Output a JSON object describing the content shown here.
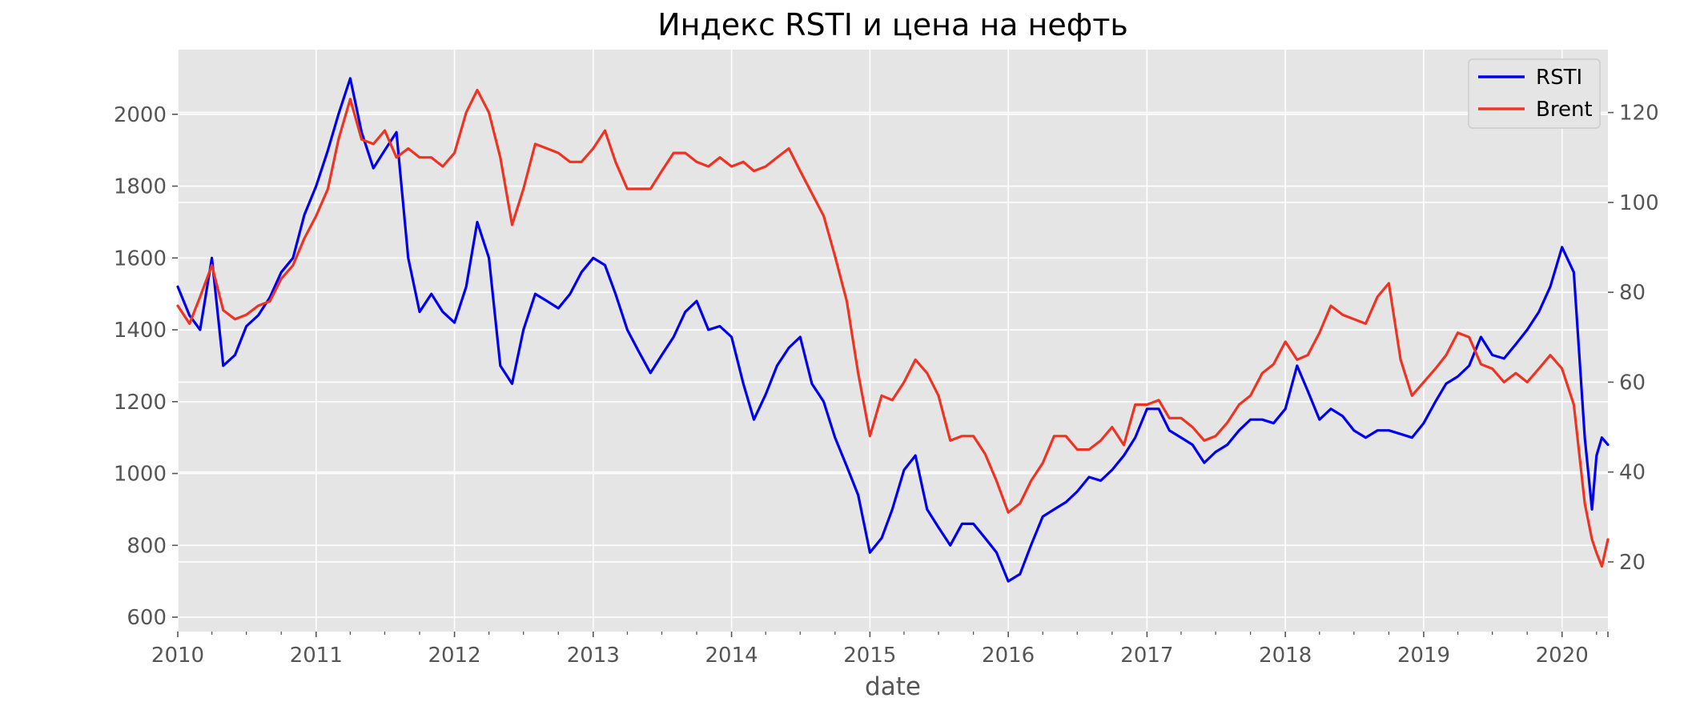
{
  "colors": {
    "background": "#e5e5e5",
    "grid": "#ffffff",
    "rsti": "#0000ee",
    "brent": "#ee3322",
    "tick_text": "#555555"
  },
  "chart_data": {
    "type": "line",
    "title": "Индекс RSTI и цена на нефть",
    "xlabel": "date",
    "ylabel": "",
    "y2label": "",
    "x_tick_labels": [
      "2010",
      "2011",
      "2012",
      "2013",
      "2014",
      "2015",
      "2016",
      "2017",
      "2018",
      "2019",
      "2020"
    ],
    "xlim": [
      "2010-01-01",
      "2020-05-01"
    ],
    "ylim_left": [
      560,
      2180
    ],
    "ylim_right": [
      4.5,
      134
    ],
    "y_ticks_left": [
      600,
      800,
      1000,
      1200,
      1400,
      1600,
      1800,
      2000
    ],
    "y_ticks_right": [
      20,
      40,
      60,
      80,
      100,
      120
    ],
    "grid": true,
    "legend": {
      "position": "top-right",
      "entries": [
        "RSTI",
        "Brent"
      ]
    },
    "series": [
      {
        "name": "RSTI",
        "axis": "left",
        "x": [
          "2010-01-01",
          "2010-02-01",
          "2010-03-01",
          "2010-04-01",
          "2010-05-01",
          "2010-06-01",
          "2010-07-01",
          "2010-08-01",
          "2010-09-01",
          "2010-10-01",
          "2010-11-01",
          "2010-12-01",
          "2011-01-01",
          "2011-02-01",
          "2011-03-01",
          "2011-04-01",
          "2011-05-01",
          "2011-06-01",
          "2011-07-01",
          "2011-08-01",
          "2011-09-01",
          "2011-10-01",
          "2011-11-01",
          "2011-12-01",
          "2012-01-01",
          "2012-02-01",
          "2012-03-01",
          "2012-04-01",
          "2012-05-01",
          "2012-06-01",
          "2012-07-01",
          "2012-08-01",
          "2012-09-01",
          "2012-10-01",
          "2012-11-01",
          "2012-12-01",
          "2013-01-01",
          "2013-02-01",
          "2013-03-01",
          "2013-04-01",
          "2013-05-01",
          "2013-06-01",
          "2013-07-01",
          "2013-08-01",
          "2013-09-01",
          "2013-10-01",
          "2013-11-01",
          "2013-12-01",
          "2014-01-01",
          "2014-02-01",
          "2014-03-01",
          "2014-04-01",
          "2014-05-01",
          "2014-06-01",
          "2014-07-01",
          "2014-08-01",
          "2014-09-01",
          "2014-10-01",
          "2014-11-01",
          "2014-12-01",
          "2015-01-01",
          "2015-02-01",
          "2015-03-01",
          "2015-04-01",
          "2015-05-01",
          "2015-06-01",
          "2015-07-01",
          "2015-08-01",
          "2015-09-01",
          "2015-10-01",
          "2015-11-01",
          "2015-12-01",
          "2016-01-01",
          "2016-02-01",
          "2016-03-01",
          "2016-04-01",
          "2016-05-01",
          "2016-06-01",
          "2016-07-01",
          "2016-08-01",
          "2016-09-01",
          "2016-10-01",
          "2016-11-01",
          "2016-12-01",
          "2017-01-01",
          "2017-02-01",
          "2017-03-01",
          "2017-04-01",
          "2017-05-01",
          "2017-06-01",
          "2017-07-01",
          "2017-08-01",
          "2017-09-01",
          "2017-10-01",
          "2017-11-01",
          "2017-12-01",
          "2018-01-01",
          "2018-02-01",
          "2018-03-01",
          "2018-04-01",
          "2018-05-01",
          "2018-06-01",
          "2018-07-01",
          "2018-08-01",
          "2018-09-01",
          "2018-10-01",
          "2018-11-01",
          "2018-12-01",
          "2019-01-01",
          "2019-02-01",
          "2019-03-01",
          "2019-04-01",
          "2019-05-01",
          "2019-06-01",
          "2019-07-01",
          "2019-08-01",
          "2019-09-01",
          "2019-10-01",
          "2019-11-01",
          "2019-12-01",
          "2020-01-01",
          "2020-02-01",
          "2020-03-01",
          "2020-03-20",
          "2020-04-01",
          "2020-04-15",
          "2020-05-01"
        ],
        "values": [
          1520,
          1440,
          1400,
          1600,
          1300,
          1330,
          1410,
          1440,
          1490,
          1560,
          1600,
          1720,
          1800,
          1900,
          2000,
          2100,
          1950,
          1850,
          1900,
          1950,
          1600,
          1450,
          1500,
          1450,
          1420,
          1520,
          1700,
          1600,
          1300,
          1250,
          1400,
          1500,
          1480,
          1460,
          1500,
          1560,
          1600,
          1580,
          1500,
          1400,
          1340,
          1280,
          1330,
          1380,
          1450,
          1480,
          1400,
          1410,
          1380,
          1250,
          1150,
          1220,
          1300,
          1350,
          1380,
          1250,
          1200,
          1100,
          1020,
          940,
          780,
          820,
          900,
          1010,
          1050,
          900,
          850,
          800,
          860,
          860,
          820,
          780,
          700,
          720,
          800,
          880,
          900,
          920,
          950,
          990,
          980,
          1010,
          1050,
          1100,
          1180,
          1180,
          1120,
          1100,
          1080,
          1030,
          1060,
          1080,
          1120,
          1150,
          1150,
          1140,
          1180,
          1300,
          1230,
          1150,
          1180,
          1160,
          1120,
          1100,
          1120,
          1120,
          1110,
          1100,
          1140,
          1200,
          1250,
          1270,
          1300,
          1380,
          1330,
          1320,
          1360,
          1400,
          1450,
          1520,
          1630,
          1560,
          1100,
          900,
          1050,
          1100,
          1080
        ]
      },
      {
        "name": "Brent",
        "axis": "right",
        "x": [
          "2010-01-01",
          "2010-02-01",
          "2010-03-01",
          "2010-04-01",
          "2010-05-01",
          "2010-06-01",
          "2010-07-01",
          "2010-08-01",
          "2010-09-01",
          "2010-10-01",
          "2010-11-01",
          "2010-12-01",
          "2011-01-01",
          "2011-02-01",
          "2011-03-01",
          "2011-04-01",
          "2011-05-01",
          "2011-06-01",
          "2011-07-01",
          "2011-08-01",
          "2011-09-01",
          "2011-10-01",
          "2011-11-01",
          "2011-12-01",
          "2012-01-01",
          "2012-02-01",
          "2012-03-01",
          "2012-04-01",
          "2012-05-01",
          "2012-06-01",
          "2012-07-01",
          "2012-08-01",
          "2012-09-01",
          "2012-10-01",
          "2012-11-01",
          "2012-12-01",
          "2013-01-01",
          "2013-02-01",
          "2013-03-01",
          "2013-04-01",
          "2013-05-01",
          "2013-06-01",
          "2013-07-01",
          "2013-08-01",
          "2013-09-01",
          "2013-10-01",
          "2013-11-01",
          "2013-12-01",
          "2014-01-01",
          "2014-02-01",
          "2014-03-01",
          "2014-04-01",
          "2014-05-01",
          "2014-06-01",
          "2014-07-01",
          "2014-08-01",
          "2014-09-01",
          "2014-10-01",
          "2014-11-01",
          "2014-12-01",
          "2015-01-01",
          "2015-02-01",
          "2015-03-01",
          "2015-04-01",
          "2015-05-01",
          "2015-06-01",
          "2015-07-01",
          "2015-08-01",
          "2015-09-01",
          "2015-10-01",
          "2015-11-01",
          "2015-12-01",
          "2016-01-01",
          "2016-02-01",
          "2016-03-01",
          "2016-04-01",
          "2016-05-01",
          "2016-06-01",
          "2016-07-01",
          "2016-08-01",
          "2016-09-01",
          "2016-10-01",
          "2016-11-01",
          "2016-12-01",
          "2017-01-01",
          "2017-02-01",
          "2017-03-01",
          "2017-04-01",
          "2017-05-01",
          "2017-06-01",
          "2017-07-01",
          "2017-08-01",
          "2017-09-01",
          "2017-10-01",
          "2017-11-01",
          "2017-12-01",
          "2018-01-01",
          "2018-02-01",
          "2018-03-01",
          "2018-04-01",
          "2018-05-01",
          "2018-06-01",
          "2018-07-01",
          "2018-08-01",
          "2018-09-01",
          "2018-10-01",
          "2018-11-01",
          "2018-12-01",
          "2019-01-01",
          "2019-02-01",
          "2019-03-01",
          "2019-04-01",
          "2019-05-01",
          "2019-06-01",
          "2019-07-01",
          "2019-08-01",
          "2019-09-01",
          "2019-10-01",
          "2019-11-01",
          "2019-12-01",
          "2020-01-01",
          "2020-02-01",
          "2020-03-01",
          "2020-03-20",
          "2020-04-01",
          "2020-04-15",
          "2020-05-01"
        ],
        "values": [
          77,
          73,
          79,
          86,
          76,
          74,
          75,
          77,
          78,
          83,
          86,
          92,
          97,
          103,
          114,
          123,
          114,
          113,
          116,
          110,
          112,
          110,
          110,
          108,
          111,
          120,
          125,
          120,
          110,
          95,
          103,
          113,
          112,
          111,
          109,
          109,
          112,
          116,
          109,
          103,
          103,
          103,
          107,
          111,
          111,
          109,
          108,
          110,
          108,
          109,
          107,
          108,
          110,
          112,
          107,
          102,
          97,
          88,
          78,
          62,
          48,
          57,
          56,
          60,
          65,
          62,
          57,
          47,
          48,
          48,
          44,
          38,
          31,
          33,
          38,
          42,
          48,
          48,
          45,
          45,
          47,
          50,
          46,
          55,
          55,
          56,
          52,
          52,
          50,
          47,
          48,
          51,
          55,
          57,
          62,
          64,
          69,
          65,
          66,
          71,
          77,
          75,
          74,
          73,
          79,
          82,
          65,
          57,
          60,
          63,
          66,
          71,
          70,
          64,
          63,
          60,
          62,
          60,
          63,
          66,
          63,
          55,
          33,
          25,
          22,
          19,
          25
        ]
      }
    ]
  }
}
